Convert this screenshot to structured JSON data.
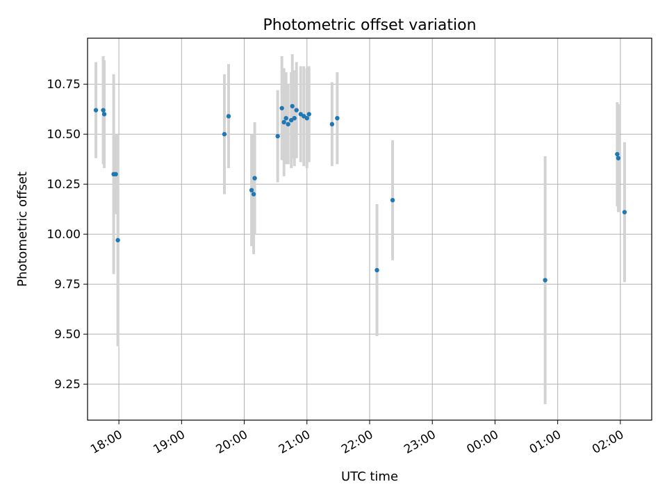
{
  "chart_data": {
    "type": "scatter",
    "title": "Photometric offset variation",
    "xlabel": "UTC time",
    "ylabel": "Photometric offset",
    "grid": true,
    "xlim": [
      "17:30",
      "02:30"
    ],
    "ylim": [
      9.07,
      10.98
    ],
    "x_tick_labels": [
      "18:00",
      "19:00",
      "20:00",
      "21:00",
      "22:00",
      "23:00",
      "00:00",
      "01:00",
      "02:00"
    ],
    "y_tick_labels": [
      "9.25",
      "9.50",
      "9.75",
      "10.00",
      "10.25",
      "10.50",
      "10.75"
    ],
    "marker_color": "#1f77b4",
    "errorbar_color": "#d3d3d3",
    "points": [
      {
        "time": "17:38",
        "y": 10.62,
        "err": 0.24
      },
      {
        "time": "17:45",
        "y": 10.62,
        "err": 0.27
      },
      {
        "time": "17:46",
        "y": 10.6,
        "err": 0.27
      },
      {
        "time": "17:55",
        "y": 10.3,
        "err": 0.5
      },
      {
        "time": "17:57",
        "y": 10.3,
        "err": 0.2
      },
      {
        "time": "17:59",
        "y": 9.97,
        "err": 0.53
      },
      {
        "time": "19:41",
        "y": 10.5,
        "err": 0.3
      },
      {
        "time": "19:45",
        "y": 10.59,
        "err": 0.26
      },
      {
        "time": "20:07",
        "y": 10.22,
        "err": 0.28
      },
      {
        "time": "20:09",
        "y": 10.2,
        "err": 0.3
      },
      {
        "time": "20:10",
        "y": 10.28,
        "err": 0.28
      },
      {
        "time": "20:32",
        "y": 10.49,
        "err": 0.23
      },
      {
        "time": "20:36",
        "y": 10.63,
        "err": 0.26
      },
      {
        "time": "20:38",
        "y": 10.56,
        "err": 0.27
      },
      {
        "time": "20:40",
        "y": 10.58,
        "err": 0.23
      },
      {
        "time": "20:42",
        "y": 10.55,
        "err": 0.2
      },
      {
        "time": "20:45",
        "y": 10.57,
        "err": 0.24
      },
      {
        "time": "20:46",
        "y": 10.64,
        "err": 0.26
      },
      {
        "time": "20:48",
        "y": 10.58,
        "err": 0.24
      },
      {
        "time": "20:50",
        "y": 10.62,
        "err": 0.24
      },
      {
        "time": "20:54",
        "y": 10.6,
        "err": 0.24
      },
      {
        "time": "20:57",
        "y": 10.59,
        "err": 0.25
      },
      {
        "time": "21:00",
        "y": 10.58,
        "err": 0.25
      },
      {
        "time": "21:02",
        "y": 10.6,
        "err": 0.24
      },
      {
        "time": "21:24",
        "y": 10.55,
        "err": 0.21
      },
      {
        "time": "21:29",
        "y": 10.58,
        "err": 0.23
      },
      {
        "time": "22:07",
        "y": 9.82,
        "err": 0.33
      },
      {
        "time": "22:22",
        "y": 10.17,
        "err": 0.3
      },
      {
        "time": "00:48",
        "y": 9.77,
        "err": 0.62
      },
      {
        "time": "01:57",
        "y": 10.4,
        "err": 0.26
      },
      {
        "time": "01:58",
        "y": 10.38,
        "err": 0.27
      },
      {
        "time": "02:04",
        "y": 10.11,
        "err": 0.35
      }
    ]
  }
}
